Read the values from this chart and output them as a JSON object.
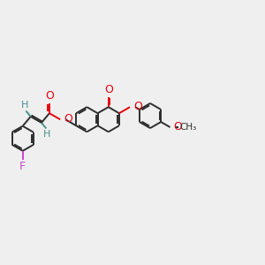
{
  "bg": "#efefef",
  "bc": "#2d2d2d",
  "oc": "#e8000d",
  "fc": "#cc44cc",
  "hc": "#4a9090",
  "lw": 1.4,
  "dbo": 0.06,
  "figsize": [
    3.0,
    3.0
  ],
  "dpi": 100,
  "xlim": [
    -3.8,
    7.2
  ],
  "ylim": [
    -2.5,
    2.5
  ]
}
